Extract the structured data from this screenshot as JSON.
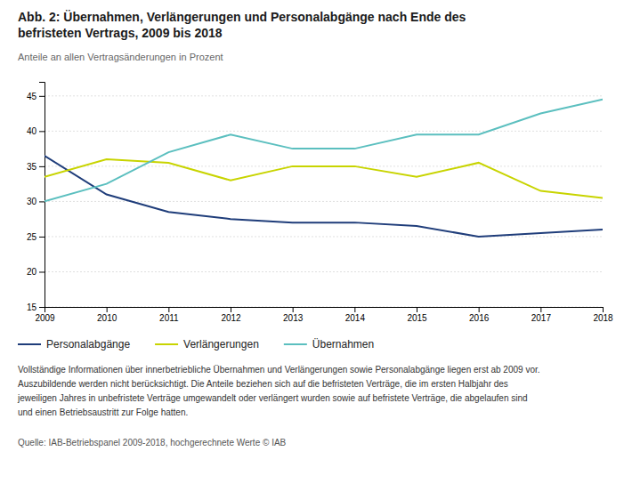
{
  "chart_data": {
    "type": "line",
    "title": [
      "Abb. 2: Übernahmen, Verlängerungen und Personalabgänge nach Ende des",
      "befristeten Vertrags, 2009 bis 2018"
    ],
    "subtitle": "Anteile an allen Vertragsänderungen in Prozent",
    "x": [
      2009,
      2010,
      2011,
      2012,
      2013,
      2014,
      2015,
      2016,
      2017,
      2018
    ],
    "xlim": [
      2009,
      2018
    ],
    "xticks": [
      2009,
      2010,
      2011,
      2012,
      2013,
      2014,
      2015,
      2016,
      2017,
      2018
    ],
    "ylim": [
      15,
      47
    ],
    "yticks": [
      15,
      20,
      25,
      30,
      35,
      40,
      45
    ],
    "grid": true,
    "legend": "bottom",
    "series": [
      {
        "name": "Personalabgänge",
        "color": "#1f3d7a",
        "values": [
          36.5,
          31.0,
          28.5,
          27.5,
          27.0,
          27.0,
          26.5,
          25.0,
          25.5,
          26.0
        ]
      },
      {
        "name": "Verlängerungen",
        "color": "#c8d400",
        "values": [
          33.5,
          36.0,
          35.5,
          33.0,
          35.0,
          35.0,
          33.5,
          35.5,
          31.5,
          30.5
        ]
      },
      {
        "name": "Übernahmen",
        "color": "#5bbfbf",
        "values": [
          30.0,
          32.5,
          37.0,
          39.5,
          37.5,
          37.5,
          39.5,
          39.5,
          42.5,
          44.5
        ]
      }
    ],
    "notes": [
      "Vollständige Informationen über innerbetriebliche Übernahmen und Verlängerungen sowie Personalabgänge liegen erst ab 2009 vor.",
      "Auszubildende werden nicht berücksichtigt. Die Anteile beziehen sich auf die befristeten Verträge, die im ersten Halbjahr des",
      "jeweiligen Jahres in unbefristete Verträge umgewandelt oder verlängert wurden sowie auf befristete Verträge, die abgelaufen sind",
      "und einen Betriebsaustritt zur Folge hatten."
    ],
    "source": "Quelle: IAB-Betriebspanel 2009-2018, hochgerechnete Werte  © IAB"
  }
}
